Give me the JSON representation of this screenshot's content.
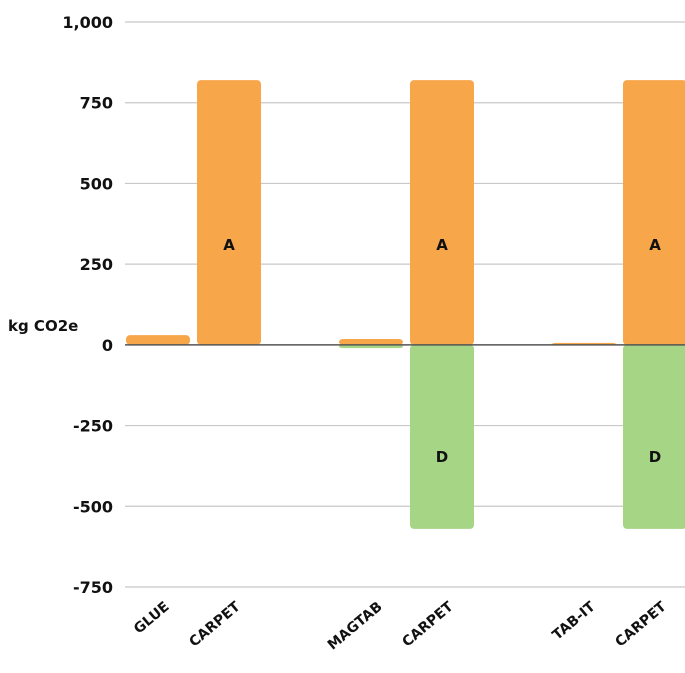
{
  "chart_data": {
    "type": "bar",
    "ylabel": "kg CO2e",
    "ylim": [
      -750,
      1000
    ],
    "yticks": [
      1000,
      750,
      500,
      250,
      0,
      -250,
      -500,
      -750
    ],
    "ytick_labels": [
      "1,000",
      "750",
      "500",
      "250",
      "0",
      "-250",
      "-500",
      "-750"
    ],
    "grid": true,
    "colors": {
      "A": "#F7A64A",
      "D": "#A5D585",
      "grid": "#c8c8c8",
      "axis": "#555555"
    },
    "categories": [
      "GLUE",
      "CARPET",
      "MAGTAB",
      "CARPET",
      "TAB-IT",
      "CARPET"
    ],
    "series": [
      {
        "name": "A",
        "values": [
          30,
          820,
          18,
          820,
          6,
          820
        ]
      },
      {
        "name": "D",
        "values": [
          0,
          0,
          -10,
          -570,
          0,
          -570
        ]
      }
    ],
    "annotations": [
      {
        "series": "A",
        "index": 1,
        "text": "A"
      },
      {
        "series": "A",
        "index": 3,
        "text": "A"
      },
      {
        "series": "D",
        "index": 3,
        "text": "D"
      },
      {
        "series": "A",
        "index": 5,
        "text": "A"
      },
      {
        "series": "D",
        "index": 5,
        "text": "D"
      }
    ]
  }
}
